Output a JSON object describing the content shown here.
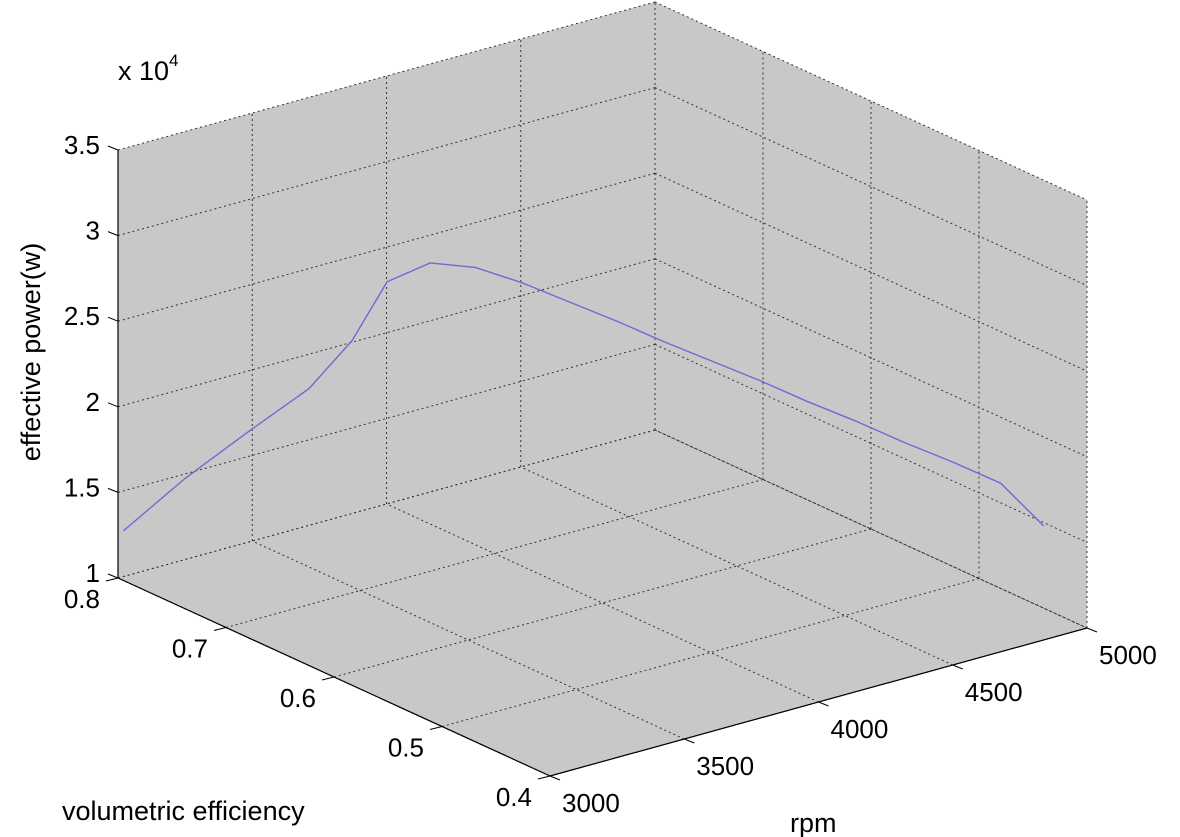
{
  "chart_data": {
    "type": "line",
    "view": "3d",
    "xlabel": "rpm",
    "ylabel": "volumetric efficiency",
    "zlabel": "effective power(w)",
    "z_exponent_label": "x 10",
    "z_exponent_power": "4",
    "xlim": [
      3000,
      5000
    ],
    "ylim": [
      0.4,
      0.8
    ],
    "zlim": [
      10000,
      35000
    ],
    "x_ticks": [
      "3000",
      "3500",
      "4000",
      "4500",
      "5000"
    ],
    "y_ticks": [
      "0.4",
      "0.5",
      "0.6",
      "0.7",
      "0.8"
    ],
    "z_ticks": [
      "1",
      "1.5",
      "2",
      "2.5",
      "3",
      "3.5"
    ],
    "x_tick_values": [
      3000,
      3500,
      4000,
      4500,
      5000
    ],
    "y_tick_values": [
      0.4,
      0.5,
      0.6,
      0.7,
      0.8
    ],
    "z_tick_values": [
      10000,
      15000,
      20000,
      25000,
      30000,
      35000
    ],
    "grid": true,
    "background_color": "#c8c8c8",
    "line_color": "#6b6bd6",
    "series": [
      {
        "x": [
          3000,
          3150,
          3300,
          3450,
          3550,
          3600,
          3700,
          3800,
          3900,
          4000,
          4100,
          4200,
          4300,
          4400,
          4500,
          4600,
          4700,
          4800,
          4900,
          5000
        ],
        "y": [
          0.795,
          0.775,
          0.755,
          0.735,
          0.72,
          0.7,
          0.685,
          0.668,
          0.65,
          0.63,
          0.61,
          0.595,
          0.575,
          0.555,
          0.535,
          0.515,
          0.495,
          0.475,
          0.455,
          0.44
        ],
        "z": [
          12900,
          15900,
          18500,
          21000,
          23800,
          27600,
          28700,
          28500,
          27700,
          26700,
          25700,
          24600,
          23600,
          22600,
          21500,
          20500,
          19400,
          18400,
          17300,
          14800
        ]
      }
    ]
  }
}
